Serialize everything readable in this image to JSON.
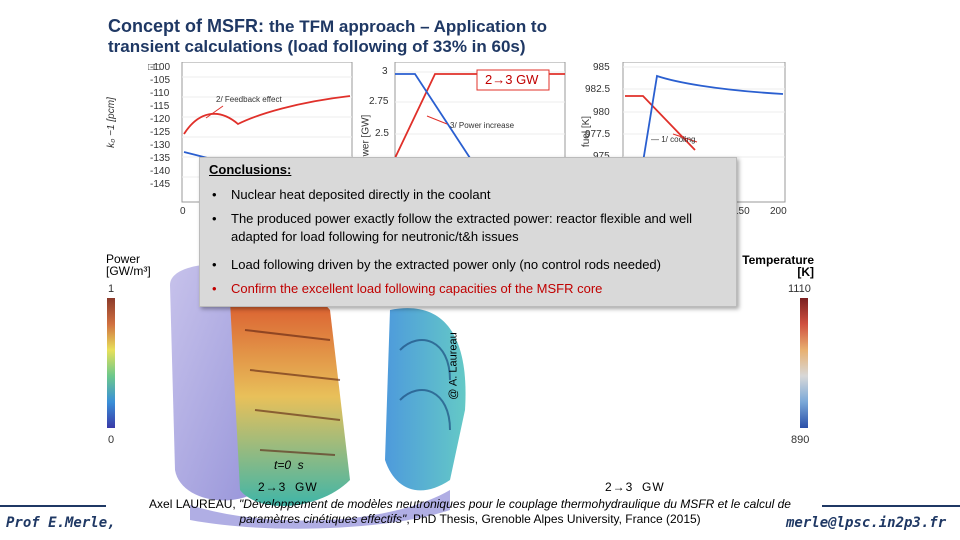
{
  "title": {
    "line1_a": "Concept of MSFR: ",
    "line1_b": "the TFM approach – Application to",
    "line2": "transient calculations   (load following of 33% in 60s)"
  },
  "plot1": {
    "ylabel": "k₀ −1 [pcm]",
    "yticks": [
      "-100",
      "-105",
      "-110",
      "-115",
      "-120",
      "-125",
      "-130",
      "-135",
      "-140",
      "-145"
    ],
    "xticks": [
      "0"
    ],
    "annotation": "2/ Feedback effect",
    "corner_marks": "□□"
  },
  "plot2": {
    "ylabel": "wer [GW]",
    "yticks": [
      "3",
      "2.75",
      "2.5"
    ],
    "gw_label": "2→3 GW",
    "annotation": "3/ Power increase"
  },
  "plot3": {
    "ylabel": "fuel [K]",
    "yticks": [
      "985",
      "982.5",
      "980",
      "977.5",
      "975"
    ],
    "xticks": [
      "150",
      "200"
    ],
    "annotation": "1/ cooling"
  },
  "conclusions": {
    "heading": "Conclusions:",
    "bullets": [
      "Nuclear heat deposited directly in the coolant",
      "The produced power exactly follow the extracted power: reactor flexible and well adapted for load following for neutronic/t&h issues",
      "Load following driven by the extracted power only (no control rods needed)"
    ],
    "highlight": "Confirm the excellent load following capacities of the MSFR core",
    "bullet_glyph": "•"
  },
  "left_scale": {
    "title1": "Power",
    "title2": "[GW/m³]",
    "max": "1",
    "min": "0"
  },
  "right_scale": {
    "title1": "Temperature",
    "title2": "[K]",
    "max": "1110",
    "min": "890"
  },
  "watermark": "@ A. Laureau",
  "time_label": "t=0  s",
  "gw_left": "2→3  GW",
  "gw_right": "2→3  GW",
  "credit": {
    "author": "Axel LAUREAU, ",
    "thesis": "\"Développement de modèles neutroniques pour le couplage thermohydraulique du MSFR et le calcul de paramètres cinétiques effectifs\"",
    "rest": ", PhD Thesis, Grenoble Alpes University, France (2015)"
  },
  "footer_left": "Prof E.Merle,",
  "footer_right": "merle@lpsc.in2p3.fr",
  "colors": {
    "accent": "#1f3864",
    "curve_red": "#e0302a",
    "curve_blue": "#2a5fd0",
    "highlight": "#c00000"
  }
}
